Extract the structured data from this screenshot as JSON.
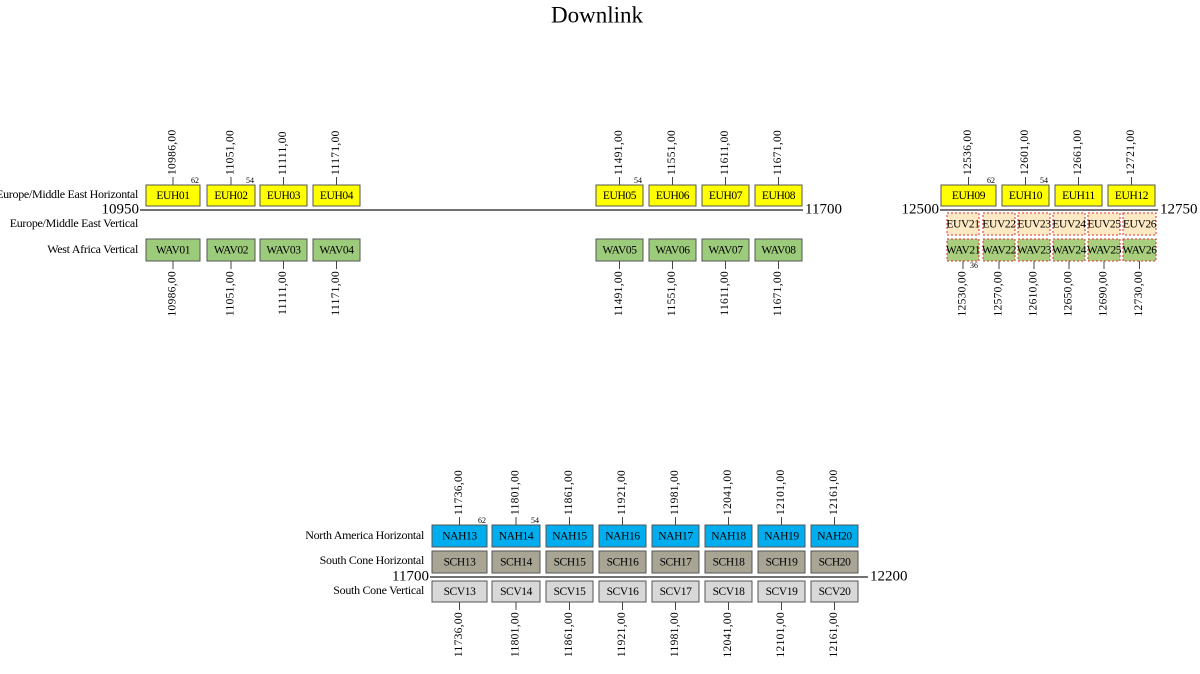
{
  "title": "Downlink",
  "panels": [
    {
      "start": "10950",
      "end": "11700",
      "rows": [
        {
          "label": "Europe/Middle East Horizontal",
          "transponders": [
            {
              "label": "EUH01",
              "frequency": "10986,00",
              "note": "62"
            },
            {
              "label": "EUH02",
              "frequency": "11051,00",
              "note": "54"
            },
            {
              "label": "EUH03",
              "frequency": "11111,00"
            },
            {
              "label": "EUH04",
              "frequency": "11171,00"
            },
            {
              "label": "EUH05",
              "frequency": "11491,00",
              "note": "54"
            },
            {
              "label": "EUH06",
              "frequency": "11551,00"
            },
            {
              "label": "EUH07",
              "frequency": "11611,00"
            },
            {
              "label": "EUH08",
              "frequency": "11671,00"
            }
          ]
        },
        {
          "label": "Europe/Middle East Vertical"
        },
        {
          "label": "West Africa Vertical",
          "transponders": [
            {
              "label": "WAV01",
              "frequency": "10986,00"
            },
            {
              "label": "WAV02",
              "frequency": "11051,00"
            },
            {
              "label": "WAV03",
              "frequency": "11111,00"
            },
            {
              "label": "WAV04",
              "frequency": "11171,00"
            },
            {
              "label": "WAV05",
              "frequency": "11491,00"
            },
            {
              "label": "WAV06",
              "frequency": "11551,00"
            },
            {
              "label": "WAV07",
              "frequency": "11611,00"
            },
            {
              "label": "WAV08",
              "frequency": "11671,00"
            }
          ]
        }
      ]
    },
    {
      "start": "12500",
      "end": "12750",
      "rows": [
        {
          "transponders": [
            {
              "label": "EUH09",
              "frequency": "12536,00",
              "note": "62"
            },
            {
              "label": "EUH10",
              "frequency": "12601,00",
              "note": "54"
            },
            {
              "label": "EUH11",
              "frequency": "12661,00"
            },
            {
              "label": "EUH12",
              "frequency": "12721,00"
            }
          ]
        },
        {
          "transponders": [
            {
              "label": "EUV21"
            },
            {
              "label": "EUV22"
            },
            {
              "label": "EUV23"
            },
            {
              "label": "EUV24"
            },
            {
              "label": "EUV25"
            },
            {
              "label": "EUV26"
            }
          ]
        },
        {
          "transponders": [
            {
              "label": "WAV21",
              "frequency": "12530,00",
              "note": "36"
            },
            {
              "label": "WAV22",
              "frequency": "12570,00"
            },
            {
              "label": "WAV23",
              "frequency": "12610,00"
            },
            {
              "label": "WAV24",
              "frequency": "12650,00"
            },
            {
              "label": "WAV25",
              "frequency": "12690,00"
            },
            {
              "label": "WAV26",
              "frequency": "12730,00"
            }
          ]
        }
      ]
    },
    {
      "start": "11700",
      "end": "12200",
      "rows": [
        {
          "label": "North America Horizontal",
          "transponders": [
            {
              "label": "NAH13",
              "frequency": "11736,00",
              "note": "62"
            },
            {
              "label": "NAH14",
              "frequency": "11801,00",
              "note": "54"
            },
            {
              "label": "NAH15",
              "frequency": "11861,00"
            },
            {
              "label": "NAH16",
              "frequency": "11921,00"
            },
            {
              "label": "NAH17",
              "frequency": "11981,00"
            },
            {
              "label": "NAH18",
              "frequency": "12041,00"
            },
            {
              "label": "NAH19",
              "frequency": "12101,00"
            },
            {
              "label": "NAH20",
              "frequency": "12161,00"
            }
          ]
        },
        {
          "label": "South Cone Horizontal",
          "transponders": [
            {
              "label": "SCH13"
            },
            {
              "label": "SCH14"
            },
            {
              "label": "SCH15"
            },
            {
              "label": "SCH16"
            },
            {
              "label": "SCH17"
            },
            {
              "label": "SCH18"
            },
            {
              "label": "SCH19"
            },
            {
              "label": "SCH20"
            }
          ]
        },
        {
          "label": "South Cone Vertical",
          "transponders": [
            {
              "label": "SCV13",
              "frequency": "11736,00"
            },
            {
              "label": "SCV14",
              "frequency": "11801,00"
            },
            {
              "label": "SCV15",
              "frequency": "11861,00"
            },
            {
              "label": "SCV16",
              "frequency": "11921,00"
            },
            {
              "label": "SCV17",
              "frequency": "11981,00"
            },
            {
              "label": "SCV18",
              "frequency": "12041,00"
            },
            {
              "label": "SCV19",
              "frequency": "12101,00"
            },
            {
              "label": "SCV20",
              "frequency": "12161,00"
            }
          ]
        }
      ]
    }
  ]
}
